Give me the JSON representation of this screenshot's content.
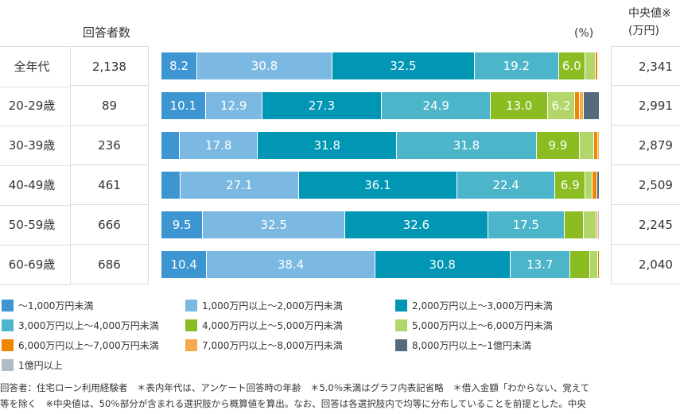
{
  "headers": {
    "count": "回答者数",
    "percent": "(%)",
    "median_line1": "中央値※",
    "median_line2": "(万円)"
  },
  "chart_data": {
    "type": "bar",
    "orientation": "horizontal-stacked-100",
    "unit": "%",
    "categories": [
      "全年代",
      "20-29歳",
      "30-39歳",
      "40-49歳",
      "50-59歳",
      "60-69歳"
    ],
    "respondents": [
      "2,138",
      "89",
      "236",
      "461",
      "666",
      "686"
    ],
    "medians": [
      "2,341",
      "2,991",
      "2,879",
      "2,509",
      "2,245",
      "2,040"
    ],
    "series": [
      {
        "name": "〜1,000万円未満",
        "color": "#3d96d2",
        "values": [
          8.2,
          10.1,
          4.2,
          4.3,
          9.5,
          10.4
        ]
      },
      {
        "name": "1,000万円以上〜2,000万円未満",
        "color": "#7bb8e2",
        "values": [
          30.8,
          12.9,
          17.8,
          27.1,
          32.5,
          38.4
        ]
      },
      {
        "name": "2,000万円以上〜3,000万円未満",
        "color": "#0096b4",
        "values": [
          32.5,
          27.3,
          31.8,
          36.1,
          32.6,
          30.8
        ]
      },
      {
        "name": "3,000万円以上〜4,000万円未満",
        "color": "#4db5c9",
        "values": [
          19.2,
          24.9,
          31.8,
          22.4,
          17.5,
          13.7
        ]
      },
      {
        "name": "4,000万円以上〜5,000万円未満",
        "color": "#8bbd22",
        "values": [
          6.0,
          13.0,
          9.9,
          6.9,
          4.4,
          4.6
        ]
      },
      {
        "name": "5,000万円以上〜6,000万円未満",
        "color": "#b3d66b",
        "values": [
          2.4,
          6.2,
          3.2,
          1.6,
          2.9,
          1.8
        ]
      },
      {
        "name": "6,000万円以上〜7,000万円未満",
        "color": "#ef8600",
        "values": [
          0.5,
          1.0,
          1.0,
          1.0,
          0.3,
          0.3
        ]
      },
      {
        "name": "7,000万円以上〜8,000万円未満",
        "color": "#f5a94b",
        "values": [
          0.2,
          1.0,
          0.3,
          0.0,
          0.0,
          0.0
        ]
      },
      {
        "name": "8,000万円以上〜1億円未満",
        "color": "#546b7c",
        "values": [
          0.2,
          3.6,
          0.0,
          0.6,
          0.0,
          0.0
        ]
      },
      {
        "name": "1億円以上",
        "color": "#b0bcc4",
        "values": [
          0.0,
          0.0,
          0.0,
          0.0,
          0.4,
          0.0
        ]
      }
    ],
    "label_threshold": 5.0
  },
  "footnotes": [
    "回答者：住宅ローン利用経験者　＊表内年代は、アンケート回答時の年齢　＊5.0％未満はグラフ内表記省略　＊借入金額「わからない、覚えて",
    "等を除く　※中央値は、50％部分が含まれる選択肢から概算値を算出。なお、回答は各選択肢内で均等に分布していることを前提とした。中央"
  ]
}
